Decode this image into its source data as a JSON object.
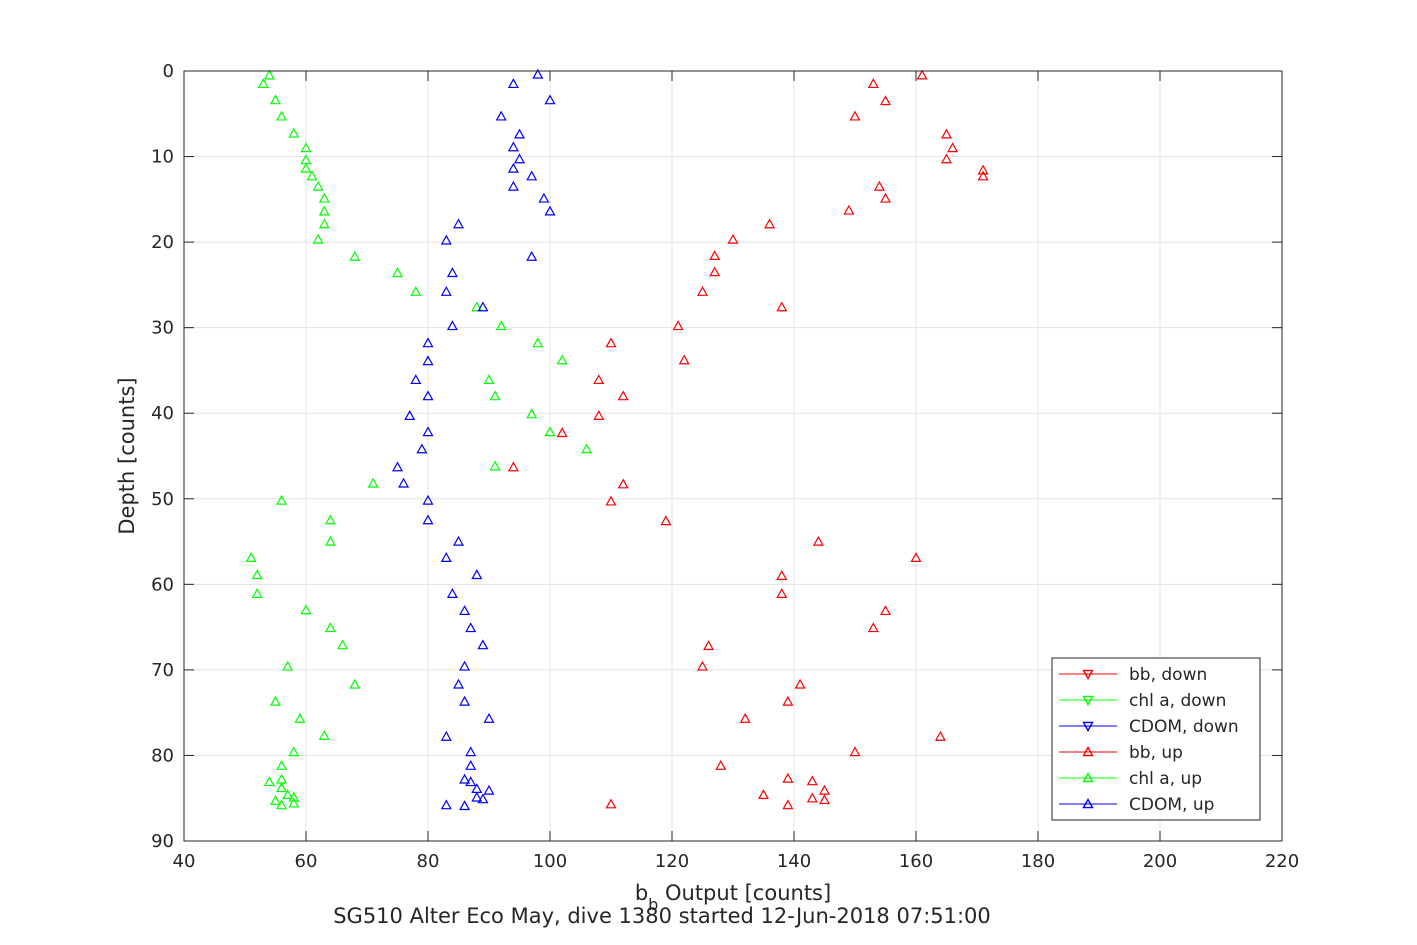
{
  "chart_data": {
    "type": "scatter",
    "title": "SG510 Alter Eco May, dive 1380 started 12-Jun-2018 07:51:00",
    "xlabel_main": "b",
    "xlabel_sub": "b",
    "xlabel_rest": " Output [counts]",
    "ylabel": "Depth [counts]",
    "xlim": [
      40,
      220
    ],
    "ylim": [
      0,
      90
    ],
    "y_reversed": true,
    "grid": true,
    "xticks": [
      40,
      60,
      80,
      100,
      120,
      140,
      160,
      180,
      200,
      220
    ],
    "yticks": [
      0,
      10,
      20,
      30,
      40,
      50,
      60,
      70,
      80,
      90
    ],
    "legend_position": "bottom-right",
    "colors": {
      "bb": "#ff0000",
      "chl": "#00ff00",
      "cdom": "#0000ff"
    },
    "series": [
      {
        "name": "bb, down",
        "color": "#ff0000",
        "marker": "triangle-down",
        "points": []
      },
      {
        "name": "chl a, down",
        "color": "#00ff00",
        "marker": "triangle-down",
        "points": []
      },
      {
        "name": "CDOM, down",
        "color": "#0000ff",
        "marker": "triangle-down",
        "points": []
      },
      {
        "name": "bb, up",
        "color": "#ff0000",
        "marker": "triangle-up",
        "points": [
          [
            161,
            0.5
          ],
          [
            153,
            1.5
          ],
          [
            155,
            3.5
          ],
          [
            150,
            5.3
          ],
          [
            165,
            7.4
          ],
          [
            166,
            9
          ],
          [
            165,
            10.3
          ],
          [
            171,
            11.6
          ],
          [
            171,
            12.3
          ],
          [
            154,
            13.5
          ],
          [
            155,
            14.9
          ],
          [
            149,
            16.3
          ],
          [
            136,
            17.9
          ],
          [
            130,
            19.7
          ],
          [
            127,
            21.6
          ],
          [
            127,
            23.5
          ],
          [
            125,
            25.8
          ],
          [
            138,
            27.6
          ],
          [
            121,
            29.8
          ],
          [
            110,
            31.8
          ],
          [
            122,
            33.8
          ],
          [
            108,
            36.1
          ],
          [
            112,
            38
          ],
          [
            108,
            40.3
          ],
          [
            102,
            42.3
          ],
          [
            94,
            46.3
          ],
          [
            112,
            48.3
          ],
          [
            110,
            50.3
          ],
          [
            119,
            52.6
          ],
          [
            144,
            55
          ],
          [
            160,
            56.9
          ],
          [
            138,
            59
          ],
          [
            138,
            61.1
          ],
          [
            155,
            63.1
          ],
          [
            153,
            65.1
          ],
          [
            126,
            67.2
          ],
          [
            125,
            69.6
          ],
          [
            141,
            71.7
          ],
          [
            139,
            73.7
          ],
          [
            132,
            75.7
          ],
          [
            164,
            77.8
          ],
          [
            150,
            79.6
          ],
          [
            128,
            81.2
          ],
          [
            143,
            83
          ],
          [
            139,
            82.7
          ],
          [
            145,
            84.1
          ],
          [
            135,
            84.6
          ],
          [
            143,
            85
          ],
          [
            145,
            85.2
          ],
          [
            139,
            85.8
          ],
          [
            110,
            85.7
          ]
        ]
      },
      {
        "name": "chl a, up",
        "color": "#00ff00",
        "marker": "triangle-up",
        "points": [
          [
            54,
            0.5
          ],
          [
            53,
            1.5
          ],
          [
            55,
            3.4
          ],
          [
            56,
            5.3
          ],
          [
            58,
            7.3
          ],
          [
            60,
            9
          ],
          [
            60,
            10.4
          ],
          [
            60,
            11.4
          ],
          [
            61,
            12.3
          ],
          [
            62,
            13.5
          ],
          [
            63,
            14.9
          ],
          [
            63,
            16.4
          ],
          [
            63,
            17.9
          ],
          [
            62,
            19.7
          ],
          [
            68,
            21.7
          ],
          [
            75,
            23.6
          ],
          [
            78,
            25.8
          ],
          [
            88,
            27.6
          ],
          [
            92,
            29.8
          ],
          [
            98,
            31.8
          ],
          [
            102,
            33.8
          ],
          [
            90,
            36.1
          ],
          [
            91,
            38
          ],
          [
            97,
            40.1
          ],
          [
            100,
            42.2
          ],
          [
            106,
            44.2
          ],
          [
            91,
            46.2
          ],
          [
            71,
            48.2
          ],
          [
            56,
            50.2
          ],
          [
            64,
            52.5
          ],
          [
            64,
            55
          ],
          [
            51,
            56.9
          ],
          [
            52,
            58.9
          ],
          [
            52,
            61.1
          ],
          [
            60,
            63
          ],
          [
            64,
            65.1
          ],
          [
            66,
            67.1
          ],
          [
            57,
            69.6
          ],
          [
            68,
            71.7
          ],
          [
            55,
            73.7
          ],
          [
            59,
            75.7
          ],
          [
            63,
            77.7
          ],
          [
            58,
            79.6
          ],
          [
            56,
            81.2
          ],
          [
            54,
            83.1
          ],
          [
            56,
            82.8
          ],
          [
            56,
            83.8
          ],
          [
            57,
            84.6
          ],
          [
            58,
            84.9
          ],
          [
            55,
            85.3
          ],
          [
            58,
            85.6
          ],
          [
            56,
            85.8
          ]
        ]
      },
      {
        "name": "CDOM, up",
        "color": "#0000ff",
        "marker": "triangle-up",
        "points": [
          [
            98,
            0.4
          ],
          [
            94,
            1.5
          ],
          [
            100,
            3.4
          ],
          [
            92,
            5.3
          ],
          [
            95,
            7.4
          ],
          [
            94,
            8.9
          ],
          [
            95,
            10.3
          ],
          [
            94,
            11.4
          ],
          [
            97,
            12.3
          ],
          [
            94,
            13.5
          ],
          [
            99,
            14.9
          ],
          [
            100,
            16.4
          ],
          [
            85,
            17.9
          ],
          [
            83,
            19.8
          ],
          [
            97,
            21.7
          ],
          [
            84,
            23.6
          ],
          [
            83,
            25.8
          ],
          [
            89,
            27.6
          ],
          [
            84,
            29.8
          ],
          [
            80,
            31.8
          ],
          [
            80,
            33.9
          ],
          [
            78,
            36.1
          ],
          [
            80,
            38
          ],
          [
            77,
            40.3
          ],
          [
            80,
            42.2
          ],
          [
            79,
            44.2
          ],
          [
            75,
            46.3
          ],
          [
            76,
            48.2
          ],
          [
            80,
            50.2
          ],
          [
            80,
            52.5
          ],
          [
            85,
            55
          ],
          [
            83,
            56.9
          ],
          [
            88,
            58.9
          ],
          [
            84,
            61.1
          ],
          [
            86,
            63.1
          ],
          [
            87,
            65.1
          ],
          [
            89,
            67.1
          ],
          [
            86,
            69.6
          ],
          [
            85,
            71.7
          ],
          [
            86,
            73.7
          ],
          [
            90,
            75.7
          ],
          [
            83,
            77.8
          ],
          [
            87,
            79.6
          ],
          [
            87,
            81.2
          ],
          [
            86,
            82.8
          ],
          [
            87,
            83.1
          ],
          [
            88,
            83.9
          ],
          [
            90,
            84.1
          ],
          [
            88,
            84.9
          ],
          [
            89,
            85.1
          ],
          [
            86,
            85.9
          ],
          [
            83,
            85.8
          ]
        ]
      }
    ]
  }
}
